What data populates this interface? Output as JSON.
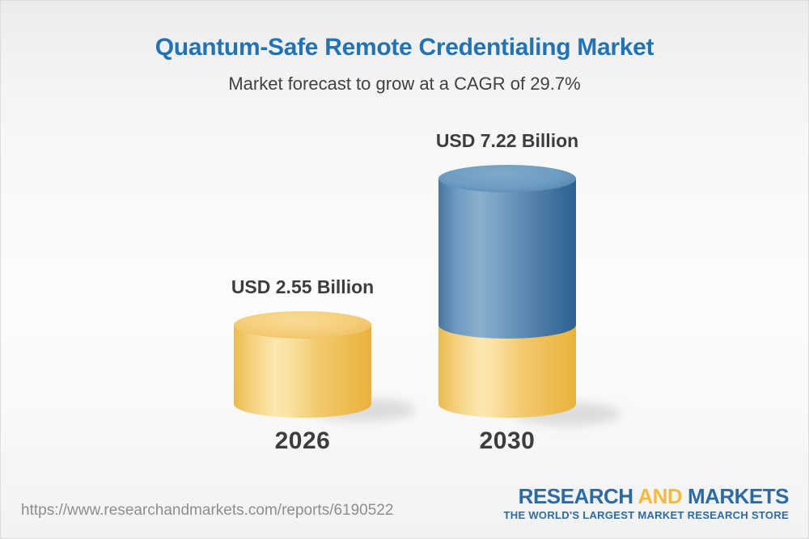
{
  "header": {
    "title": "Quantum-Safe Remote Credentialing Market",
    "subtitle": "Market forecast to grow at a CAGR of 29.7%"
  },
  "chart_data": {
    "type": "bar",
    "variant": "3d-cylinder",
    "categories": [
      "2026",
      "2030"
    ],
    "values": [
      2.55,
      7.22
    ],
    "unit": "USD Billion",
    "labels": [
      "USD 2.55 Billion",
      "USD 7.22 Billion"
    ],
    "cagr_percent": 29.7,
    "ylim": [
      0,
      7.22
    ],
    "grid": "off",
    "legend": "none",
    "notes": "2030 cylinder is stacked: yellow base equals the 2026 value, blue top is the growth increment",
    "colors": {
      "base_segment": "#f5cd78",
      "growth_segment": "#6d9cc2",
      "title": "#2173b4",
      "label_text": "#3d3d3d"
    }
  },
  "footer": {
    "url": "https://www.researchandmarkets.com/reports/6190522",
    "logo": {
      "part1": "RESEARCH",
      "part2": "AND",
      "part3": "MARKETS",
      "tagline": "THE WORLD'S LARGEST MARKET RESEARCH STORE"
    }
  }
}
